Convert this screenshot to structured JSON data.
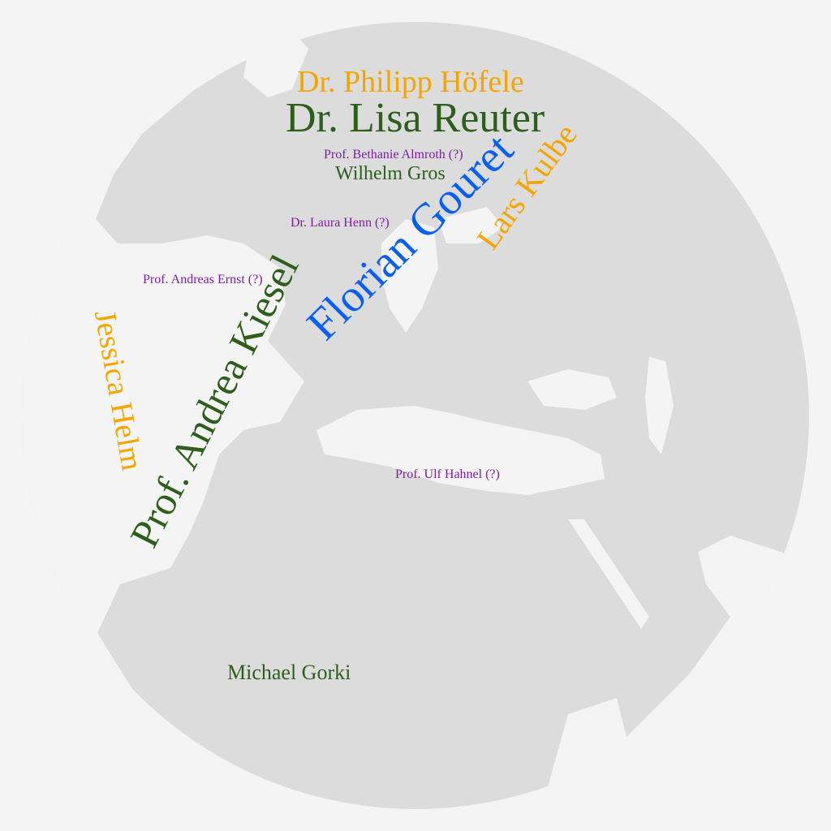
{
  "colors": {
    "background": "#f4f4f4",
    "globe": "#dcdcdc",
    "land": "#f4f4f4",
    "orange": "#f5a500",
    "green": "#2e5e1c",
    "blue": "#0a5ef0",
    "purple": "#7a1fa0"
  },
  "words": [
    {
      "text": "Dr. Philipp Höfele",
      "color": "orange"
    },
    {
      "text": "Dr. Lisa Reuter",
      "color": "green"
    },
    {
      "text": "Prof. Bethanie Almroth (?)",
      "color": "purple"
    },
    {
      "text": "Wilhelm Gros",
      "color": "green"
    },
    {
      "text": "Florian Gouret",
      "color": "blue"
    },
    {
      "text": "Lars Kulbe",
      "color": "orange"
    },
    {
      "text": "Dr. Laura Henn (?)",
      "color": "purple"
    },
    {
      "text": "Prof. Andreas Ernst (?)",
      "color": "purple"
    },
    {
      "text": "Prof. Andrea Kiesel",
      "color": "green"
    },
    {
      "text": "Jessica Helm",
      "color": "orange"
    },
    {
      "text": "Prof. Ulf Hahnel (?)",
      "color": "purple"
    },
    {
      "text": "Michael Gorki",
      "color": "green"
    }
  ]
}
